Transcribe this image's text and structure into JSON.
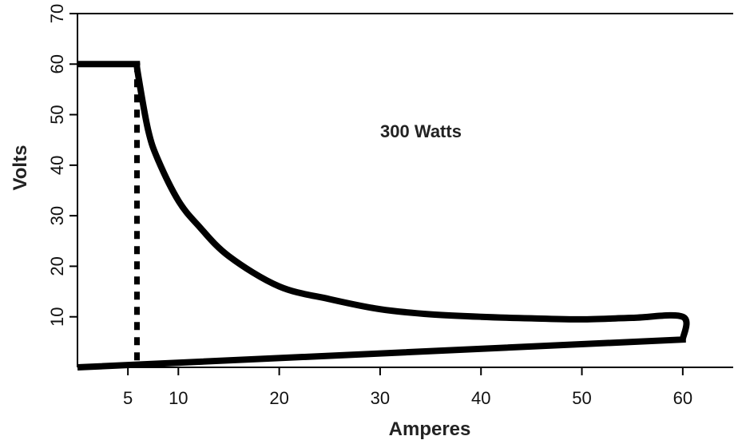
{
  "chart_data": {
    "type": "line",
    "title": "",
    "xlabel": "Amperes",
    "ylabel": "Volts",
    "xlim": [
      0,
      65
    ],
    "ylim": [
      0,
      70
    ],
    "x_ticks": [
      5,
      10,
      20,
      30,
      40,
      50,
      60
    ],
    "y_ticks": [
      10,
      20,
      30,
      40,
      50,
      60,
      70
    ],
    "grid": false,
    "legend": "none",
    "annotation": "300 Watts",
    "line_color": "#000000",
    "series": [
      {
        "points": [
          [
            0,
            60
          ],
          [
            5.9,
            60
          ],
          [
            6,
            58
          ],
          [
            7,
            47
          ],
          [
            8,
            41
          ],
          [
            10,
            33
          ],
          [
            12,
            28
          ],
          [
            15,
            22
          ],
          [
            20,
            16
          ],
          [
            25,
            13.5
          ],
          [
            30,
            11.5
          ],
          [
            35,
            10.5
          ],
          [
            40,
            10
          ],
          [
            45,
            9.7
          ],
          [
            50,
            9.5
          ],
          [
            55,
            9.8
          ],
          [
            60,
            10
          ],
          [
            60,
            5.5
          ],
          [
            0,
            0
          ]
        ]
      },
      {
        "style": "dotted",
        "points": [
          [
            5.9,
            60
          ],
          [
            5.9,
            0
          ]
        ]
      }
    ]
  }
}
